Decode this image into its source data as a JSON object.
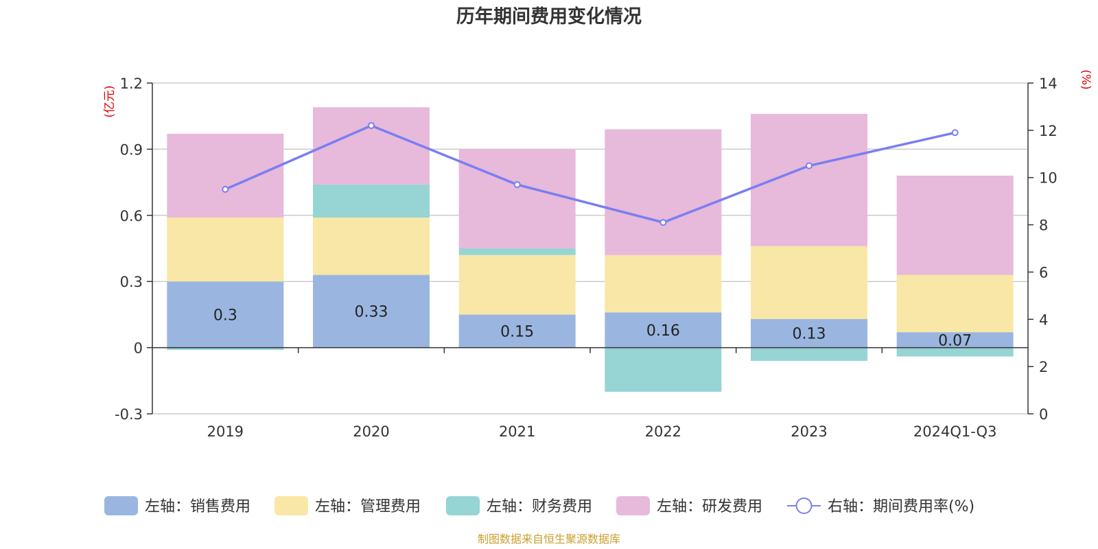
{
  "chart_data": {
    "type": "bar",
    "title": "历年期间费用变化情况",
    "categories": [
      "2019",
      "2020",
      "2021",
      "2022",
      "2023",
      "2024Q1-Q3"
    ],
    "left_axis": {
      "unit": "(亿元)",
      "ylim": [
        -0.3,
        1.2
      ],
      "ticks": [
        "1.2",
        "0.9",
        "0.6",
        "0.3",
        "0",
        "-0.3"
      ]
    },
    "right_axis": {
      "unit": "(%)",
      "ylim": [
        0,
        14
      ],
      "ticks": [
        "14",
        "12",
        "10",
        "8",
        "6",
        "4",
        "2",
        "0"
      ]
    },
    "series": [
      {
        "name": "左轴：销售费用",
        "kind": "bar",
        "color": "#9ab6e0",
        "values": [
          0.3,
          0.33,
          0.15,
          0.16,
          0.13,
          0.07
        ]
      },
      {
        "name": "左轴：管理费用",
        "kind": "bar",
        "color": "#f8e7a6",
        "values": [
          0.29,
          0.26,
          0.27,
          0.26,
          0.33,
          0.26
        ]
      },
      {
        "name": "左轴：财务费用",
        "kind": "bar",
        "color": "#97d4d4",
        "values": [
          -0.01,
          0.15,
          0.03,
          -0.2,
          -0.06,
          -0.04
        ]
      },
      {
        "name": "左轴：研发费用",
        "kind": "bar",
        "color": "#e7b9da",
        "values": [
          0.38,
          0.35,
          0.45,
          0.57,
          0.6,
          0.45
        ]
      },
      {
        "name": "右轴：期间费用率(%)",
        "kind": "line",
        "axis": "right",
        "color": "#7a7ef2",
        "values": [
          9.5,
          12.2,
          9.7,
          8.1,
          10.5,
          11.9
        ]
      }
    ],
    "data_labels": [
      "0.3",
      "0.33",
      "0.15",
      "0.16",
      "0.13",
      "0.07"
    ],
    "legend_position": "bottom"
  },
  "source_note": "制图数据来自恒生聚源数据库",
  "colors": {
    "unit": "#e00000",
    "source": "#c8a030",
    "grid": "#cccccc",
    "axis": "#333333"
  }
}
